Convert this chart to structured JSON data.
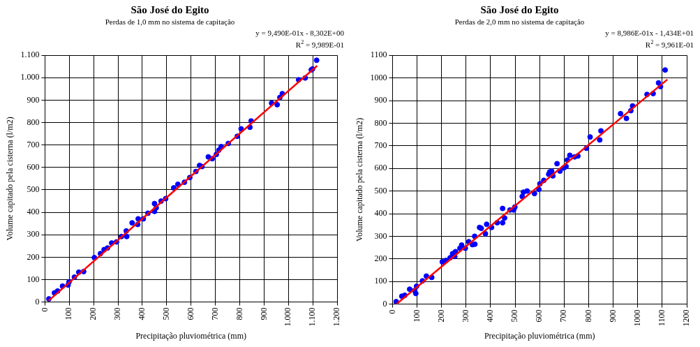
{
  "chart_data": [
    {
      "type": "scatter",
      "title": "São José do Egito",
      "subtitle": "Perdas de 1,0 mm no sistema de capitação",
      "xlabel": "Precipitação pluviométrica (mm)",
      "ylabel": "Volume capitado pela cisterna (l/m2)",
      "annotations": [
        "y = 9,490E-01x - 8,302E+00",
        "R$^{2}$ = 9,989E-01"
      ],
      "xlim": [
        0,
        1200
      ],
      "ylim": [
        0,
        1100
      ],
      "xticks": [
        0,
        100,
        200,
        300,
        400,
        500,
        600,
        700,
        800,
        900,
        {
          "value": 1000,
          "label": "1.000"
        },
        {
          "value": 1100,
          "label": "1.100"
        },
        {
          "value": 1200,
          "label": "1.200"
        }
      ],
      "yticks": [
        0,
        100,
        200,
        300,
        400,
        500,
        600,
        700,
        800,
        900,
        {
          "value": 1000,
          "label": "1.000"
        },
        {
          "value": 1100,
          "label": "1.100"
        }
      ],
      "grid": true,
      "legend": false,
      "marker": "circle",
      "series": [
        {
          "color": "#0000ff",
          "x": [
            16,
            39,
            52,
            72,
            95,
            99,
            121,
            139,
            159,
            203,
            228,
            243,
            257,
            274,
            294,
            314,
            334,
            336,
            358,
            383,
            381,
            404,
            423,
            450,
            450,
            457,
            477,
            496,
            529,
            546,
            573,
            595,
            620,
            635,
            645,
            671,
            687,
            704,
            714,
            724,
            753,
            790,
            806,
            842,
            847,
            931,
            954,
            965,
            975,
            1042,
            1069,
            1094,
            1099,
            1116
          ],
          "values": [
            14,
            41,
            49,
            71,
            76,
            90,
            111,
            133,
            136,
            198,
            216,
            234,
            241,
            263,
            268,
            292,
            317,
            292,
            353,
            371,
            346,
            371,
            396,
            439,
            404,
            420,
            450,
            461,
            509,
            525,
            534,
            555,
            582,
            609,
            604,
            647,
            639,
            658,
            677,
            693,
            707,
            739,
            772,
            779,
            807,
            887,
            880,
            912,
            929,
            991,
            999,
            1035,
            1039,
            1078
          ]
        },
        {
          "type": "line",
          "color": "#ff0000",
          "marker": "none",
          "x": [
            15,
            1118
          ],
          "values": [
            6,
            1053
          ]
        }
      ]
    },
    {
      "type": "scatter",
      "title": "São José do Egito",
      "subtitle": "Perdas de 2,0 mm no sistema de capitação",
      "xlabel": "Precipitação pluviométrica (mm)",
      "ylabel": "Volume capitado pela cisterna (l/m2)",
      "annotations": [
        "y = 8,986E-01x - 1,434E+01",
        "R$^{2}$ = 9,961E-01"
      ],
      "xlim": [
        0,
        1200
      ],
      "ylim": [
        0,
        1100
      ],
      "xticks": [
        0,
        100,
        200,
        300,
        400,
        500,
        600,
        700,
        800,
        900,
        1000,
        1100,
        1200
      ],
      "yticks": [
        0,
        100,
        200,
        300,
        400,
        500,
        600,
        700,
        800,
        900,
        1000,
        1100
      ],
      "grid": true,
      "legend": false,
      "marker": "circle",
      "series": [
        {
          "color": "#0000ff",
          "x": [
            15,
            38,
            50,
            70,
            90,
            95,
            98,
            122,
            138,
            160,
            203,
            218,
            235,
            245,
            254,
            257,
            275,
            282,
            297,
            311,
            326,
            336,
            335,
            355,
            362,
            379,
            384,
            404,
            427,
            449,
            449,
            457,
            479,
            494,
            499,
            529,
            534,
            549,
            579,
            597,
            601,
            617,
            637,
            641,
            649,
            654,
            671,
            683,
            698,
            708,
            713,
            723,
            743,
            756,
            791,
            806,
            845,
            850,
            930,
            954,
            972,
            979,
            1038,
            1063,
            1085,
            1093,
            1112
          ],
          "values": [
            11,
            35,
            39,
            66,
            60,
            47,
            79,
            103,
            124,
            118,
            187,
            193,
            205,
            223,
            211,
            232,
            247,
            261,
            247,
            276,
            263,
            265,
            300,
            339,
            335,
            311,
            353,
            339,
            360,
            423,
            360,
            381,
            416,
            416,
            429,
            476,
            495,
            500,
            489,
            507,
            532,
            547,
            574,
            584,
            588,
            567,
            621,
            588,
            602,
            608,
            637,
            658,
            651,
            655,
            689,
            739,
            726,
            766,
            842,
            821,
            855,
            876,
            927,
            931,
            978,
            962,
            1035
          ]
        },
        {
          "type": "line",
          "color": "#ff0000",
          "marker": "none",
          "x": [
            17,
            1121
          ],
          "values": [
            1,
            993
          ]
        }
      ]
    }
  ]
}
